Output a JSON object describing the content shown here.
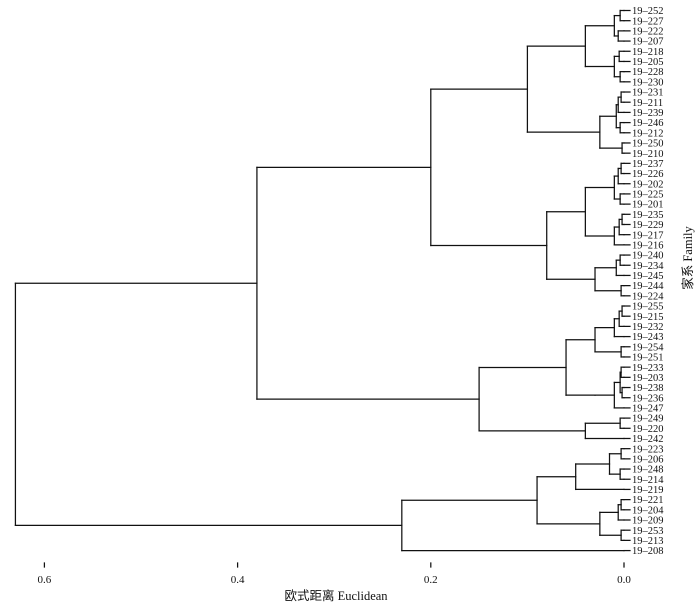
{
  "chart_data": {
    "type": "dendrogram",
    "orientation": "horizontal, leaves on right",
    "x_axis": {
      "label": "欧式距离 Euclidean",
      "reversed": true,
      "ticks": [
        0.6,
        0.4,
        0.2,
        0.0
      ],
      "tick_labels": [
        "0.6",
        "0.4",
        "0.2",
        "0.0"
      ],
      "range": [
        0.64,
        0.0
      ]
    },
    "y_axis": {
      "label": "家系 Family"
    },
    "leaves": [
      "19–252",
      "19–227",
      "19–222",
      "19–207",
      "19–218",
      "19–205",
      "19–228",
      "19–230",
      "19–231",
      "19–211",
      "19–239",
      "19–246",
      "19–212",
      "19–250",
      "19–210",
      "19–237",
      "19–226",
      "19–202",
      "19–225",
      "19–201",
      "19–235",
      "19–229",
      "19–217",
      "19–216",
      "19–240",
      "19–234",
      "19–245",
      "19–244",
      "19–224",
      "19–255",
      "19–215",
      "19–232",
      "19–243",
      "19–254",
      "19–251",
      "19–233",
      "19–203",
      "19–238",
      "19–236",
      "19–247",
      "19–249",
      "19–220",
      "19–242",
      "19–223",
      "19–206",
      "19–248",
      "19–214",
      "19–219",
      "19–221",
      "19–204",
      "19–209",
      "19–253",
      "19–213",
      "19–208"
    ],
    "tree": {
      "h": 0.63,
      "c": [
        {
          "h": 0.38,
          "c": [
            {
              "h": 0.2,
              "c": [
                {
                  "h": 0.1,
                  "c": [
                    {
                      "h": 0.04,
                      "c": [
                        {
                          "h": 0.01,
                          "c": [
                            {
                              "h": 0.004,
                              "c": [
                                {
                                  "l": 0
                                },
                                {
                                  "l": 1
                                }
                              ]
                            },
                            {
                              "h": 0.006,
                              "c": [
                                {
                                  "l": 2
                                },
                                {
                                  "l": 3
                                }
                              ]
                            }
                          ]
                        },
                        {
                          "h": 0.01,
                          "c": [
                            {
                              "h": 0.005,
                              "c": [
                                {
                                  "l": 4
                                },
                                {
                                  "l": 5
                                }
                              ]
                            },
                            {
                              "h": 0.004,
                              "c": [
                                {
                                  "l": 6
                                },
                                {
                                  "l": 7
                                }
                              ]
                            }
                          ]
                        }
                      ]
                    },
                    {
                      "h": 0.025,
                      "c": [
                        {
                          "h": 0.008,
                          "c": [
                            {
                              "h": 0.006,
                              "c": [
                                {
                                  "h": 0.003,
                                  "c": [
                                    {
                                      "l": 8
                                    },
                                    {
                                      "l": 9
                                    }
                                  ]
                                },
                                {
                                  "l": 10
                                }
                              ]
                            },
                            {
                              "h": 0.004,
                              "c": [
                                {
                                  "l": 11
                                },
                                {
                                  "l": 12
                                }
                              ]
                            }
                          ]
                        },
                        {
                          "h": 0.002,
                          "c": [
                            {
                              "l": 13
                            },
                            {
                              "l": 14
                            }
                          ]
                        }
                      ]
                    }
                  ]
                },
                {
                  "h": 0.08,
                  "c": [
                    {
                      "h": 0.04,
                      "c": [
                        {
                          "h": 0.01,
                          "c": [
                            {
                              "h": 0.006,
                              "c": [
                                {
                                  "h": 0.003,
                                  "c": [
                                    {
                                      "l": 15
                                    },
                                    {
                                      "l": 16
                                    }
                                  ]
                                },
                                {
                                  "l": 17
                                }
                              ]
                            },
                            {
                              "h": 0.004,
                              "c": [
                                {
                                  "l": 18
                                },
                                {
                                  "l": 19
                                }
                              ]
                            }
                          ]
                        },
                        {
                          "h": 0.01,
                          "c": [
                            {
                              "h": 0.005,
                              "c": [
                                {
                                  "h": 0.002,
                                  "c": [
                                    {
                                      "l": 20
                                    },
                                    {
                                      "l": 21
                                    }
                                  ]
                                },
                                {
                                  "l": 22
                                }
                              ]
                            },
                            {
                              "l": 23
                            }
                          ]
                        }
                      ]
                    },
                    {
                      "h": 0.03,
                      "c": [
                        {
                          "h": 0.008,
                          "c": [
                            {
                              "h": 0.004,
                              "c": [
                                {
                                  "l": 24
                                },
                                {
                                  "l": 25
                                }
                              ]
                            },
                            {
                              "l": 26
                            }
                          ]
                        },
                        {
                          "h": 0.003,
                          "c": [
                            {
                              "l": 27
                            },
                            {
                              "l": 28
                            }
                          ]
                        }
                      ]
                    }
                  ]
                }
              ]
            },
            {
              "h": 0.15,
              "c": [
                {
                  "h": 0.06,
                  "c": [
                    {
                      "h": 0.03,
                      "c": [
                        {
                          "h": 0.01,
                          "c": [
                            {
                              "h": 0.005,
                              "c": [
                                {
                                  "h": 0.002,
                                  "c": [
                                    {
                                      "l": 29
                                    },
                                    {
                                      "l": 30
                                    }
                                  ]
                                },
                                {
                                  "l": 31
                                }
                              ]
                            },
                            {
                              "l": 32
                            }
                          ]
                        },
                        {
                          "h": 0.003,
                          "c": [
                            {
                              "l": 33
                            },
                            {
                              "l": 34
                            }
                          ]
                        }
                      ]
                    },
                    {
                      "h": 0.03,
                      "c": [
                        {
                          "h": 0.01,
                          "c": [
                            {
                              "h": 0.004,
                              "c": [
                                {
                                  "h": 0.003,
                                  "c": [
                                    {
                                      "l": 35
                                    },
                                    {
                                      "l": 36
                                    }
                                  ]
                                },
                                {
                                  "h": 0.002,
                                  "c": [
                                    {
                                      "l": 37
                                    },
                                    {
                                      "l": 38
                                    }
                                  ]
                                }
                              ]
                            },
                            {
                              "l": 39
                            }
                          ]
                        }
                      ]
                    }
                  ]
                },
                {
                  "h": 0.04,
                  "c": [
                    {
                      "h": 0.004,
                      "c": [
                        {
                          "l": 40
                        },
                        {
                          "l": 41
                        }
                      ]
                    },
                    {
                      "l": 42
                    }
                  ]
                }
              ]
            }
          ]
        },
        {
          "h": 0.23,
          "c": [
            {
              "h": 0.09,
              "c": [
                {
                  "h": 0.05,
                  "c": [
                    {
                      "h": 0.015,
                      "c": [
                        {
                          "h": 0.003,
                          "c": [
                            {
                              "l": 43
                            },
                            {
                              "l": 44
                            }
                          ]
                        },
                        {
                          "h": 0.004,
                          "c": [
                            {
                              "l": 45
                            },
                            {
                              "l": 46
                            }
                          ]
                        }
                      ]
                    },
                    {
                      "l": 47
                    }
                  ]
                },
                {
                  "h": 0.025,
                  "c": [
                    {
                      "h": 0.006,
                      "c": [
                        {
                          "h": 0.003,
                          "c": [
                            {
                              "l": 48
                            },
                            {
                              "l": 49
                            }
                          ]
                        },
                        {
                          "l": 50
                        }
                      ]
                    },
                    {
                      "h": 0.003,
                      "c": [
                        {
                          "l": 51
                        },
                        {
                          "l": 52
                        }
                      ]
                    }
                  ]
                }
              ]
            },
            {
              "l": 53
            }
          ]
        }
      ]
    }
  }
}
